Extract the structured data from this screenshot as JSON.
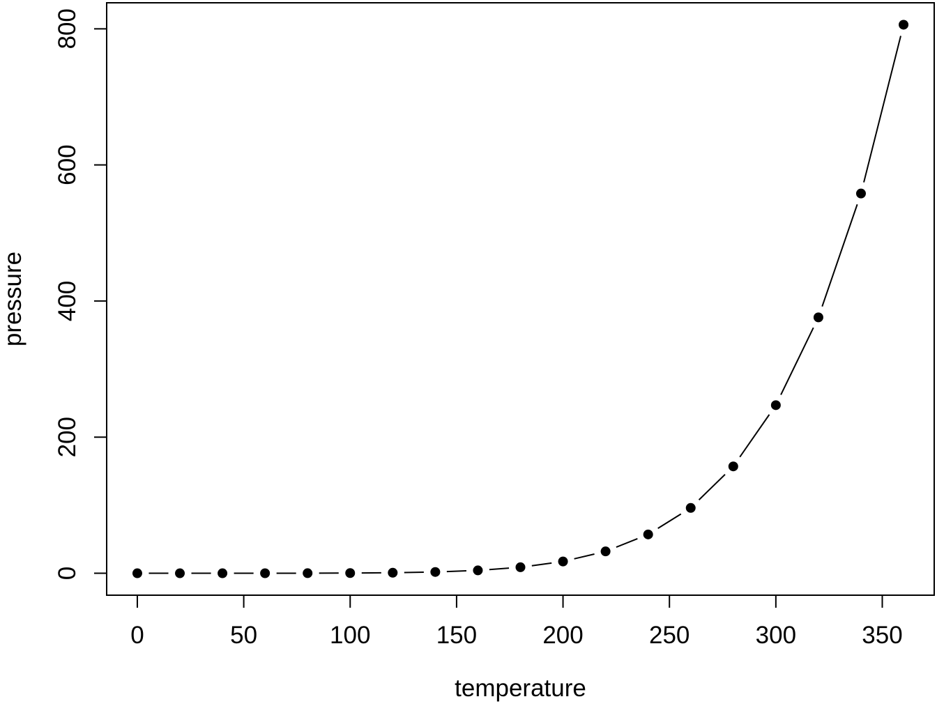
{
  "figure": {
    "background": "#ffffff",
    "foreground": "#000000"
  },
  "chart_data": {
    "type": "line",
    "subtype": "points-and-segments (R type='b')",
    "title": "",
    "xlabel": "temperature",
    "ylabel": "pressure",
    "x": [
      0,
      20,
      40,
      60,
      80,
      100,
      120,
      140,
      160,
      180,
      200,
      220,
      240,
      260,
      280,
      300,
      320,
      340,
      360
    ],
    "y": [
      0.0002,
      0.0012,
      0.006,
      0.03,
      0.09,
      0.27,
      0.75,
      1.85,
      4.2,
      8.8,
      17.3,
      32.1,
      57,
      96,
      157,
      247,
      376,
      558,
      806
    ],
    "xlim": [
      0,
      360
    ],
    "ylim": [
      0.0002,
      806
    ],
    "x_ticks": [
      0,
      50,
      100,
      150,
      200,
      250,
      300,
      350
    ],
    "y_ticks": [
      0,
      200,
      400,
      600,
      800
    ],
    "grid": false,
    "legend": null,
    "marker": "filled-circle",
    "marker_color": "#000000",
    "line_color": "#000000"
  }
}
